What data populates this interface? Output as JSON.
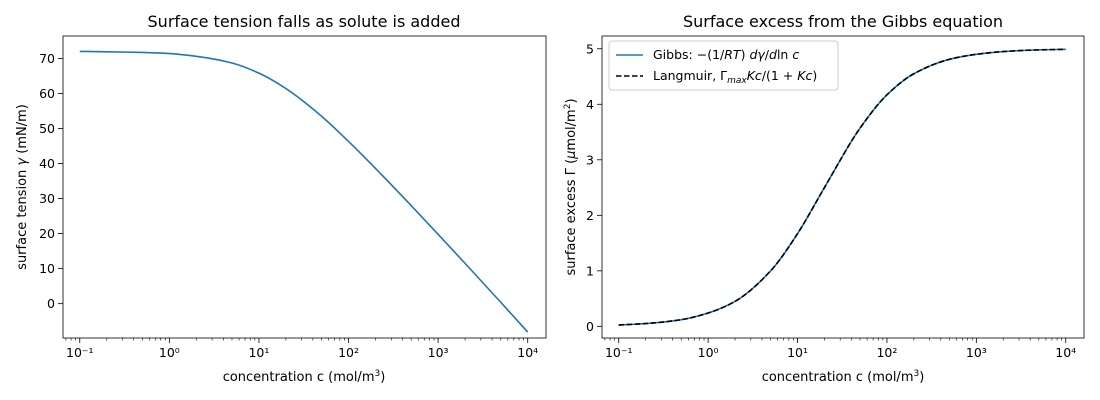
{
  "chart_data": [
    {
      "type": "line",
      "title": "Surface tension falls as solute is added",
      "xlabel": "concentration c (mol/m³)",
      "ylabel": "surface tension γ (mN/m)",
      "xscale": "log",
      "xlim": [
        0.065,
        16000
      ],
      "ylim": [
        -9.8,
        76.4
      ],
      "xticks": [
        0.1,
        1,
        10,
        100,
        1000,
        10000
      ],
      "xticklabels": [
        "10⁻¹",
        "10⁰",
        "10¹",
        "10²",
        "10³",
        "10⁴"
      ],
      "yticks": [
        0,
        10,
        20,
        30,
        40,
        50,
        60,
        70
      ],
      "yticklabels": [
        "0",
        "10",
        "20",
        "30",
        "40",
        "50",
        "60",
        "70"
      ],
      "grid": false,
      "series": [
        {
          "color": "#1f77b4",
          "style": "solid",
          "x": [
            0.1,
            0.2,
            0.5,
            1,
            2,
            5,
            10,
            20,
            50,
            100,
            200,
            500,
            1000,
            2000,
            5000,
            10000
          ],
          "y": [
            72.0,
            71.9,
            71.7,
            71.4,
            70.6,
            68.7,
            65.8,
            61.4,
            53.5,
            46.3,
            38.6,
            28.0,
            19.8,
            11.5,
            0.4,
            -8.1
          ]
        }
      ]
    },
    {
      "type": "line",
      "title": "Surface excess from the Gibbs equation",
      "xlabel": "concentration c (mol/m³)",
      "ylabel": "surface excess Γ (μmol/m²)",
      "xscale": "log",
      "xlim": [
        0.065,
        16000
      ],
      "ylim": [
        -0.21,
        5.23
      ],
      "xticks": [
        0.1,
        1,
        10,
        100,
        1000,
        10000
      ],
      "xticklabels": [
        "10⁻¹",
        "10⁰",
        "10¹",
        "10²",
        "10³",
        "10⁴"
      ],
      "yticks": [
        0,
        1,
        2,
        3,
        4,
        5
      ],
      "yticklabels": [
        "0",
        "1",
        "2",
        "3",
        "4",
        "5"
      ],
      "grid": false,
      "legend": "top-left",
      "series": [
        {
          "name": "Gibbs: −(1/RT) dγ/d ln c",
          "color": "#1f77b4",
          "style": "solid",
          "x": [
            0.1,
            0.2,
            0.5,
            1,
            2,
            5,
            10,
            20,
            50,
            100,
            200,
            500,
            1000,
            2000,
            5000,
            10000
          ],
          "y": [
            0.025,
            0.05,
            0.12,
            0.24,
            0.45,
            1.0,
            1.67,
            2.5,
            3.57,
            4.17,
            4.55,
            4.81,
            4.9,
            4.95,
            4.98,
            4.99
          ]
        },
        {
          "name": "Langmuir, Γmax Kc/(1 + Kc)",
          "color": "#000000",
          "style": "dashed",
          "x": [
            0.1,
            0.2,
            0.5,
            1,
            2,
            5,
            10,
            20,
            50,
            100,
            200,
            500,
            1000,
            2000,
            5000,
            10000
          ],
          "y": [
            0.025,
            0.05,
            0.12,
            0.24,
            0.45,
            1.0,
            1.67,
            2.5,
            3.57,
            4.17,
            4.55,
            4.81,
            4.9,
            4.95,
            4.98,
            4.99
          ]
        }
      ]
    }
  ],
  "colors": {
    "series_blue": "#1f77b4",
    "dashed_black": "#000000"
  }
}
